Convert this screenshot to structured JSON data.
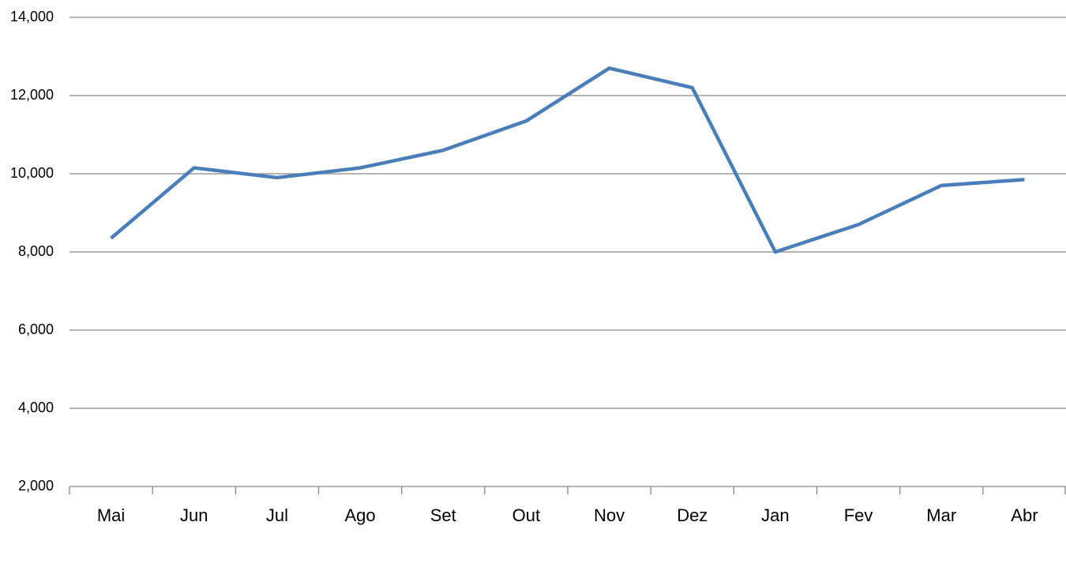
{
  "chart_data": {
    "type": "line",
    "categories": [
      "Mai",
      "Jun",
      "Jul",
      "Ago",
      "Set",
      "Out",
      "Nov",
      "Dez",
      "Jan",
      "Fev",
      "Mar",
      "Abr"
    ],
    "series": [
      {
        "color": "#4a7ebb",
        "values": [
          8350,
          10150,
          9900,
          10150,
          10600,
          11350,
          12700,
          12200,
          8000,
          8700,
          9700,
          9850
        ]
      }
    ],
    "ylim": [
      2000,
      14000
    ],
    "yticks": [
      {
        "value": 2000,
        "label": "2,000"
      },
      {
        "value": 4000,
        "label": "4,000"
      },
      {
        "value": 6000,
        "label": "6,000"
      },
      {
        "value": 8000,
        "label": "8,000"
      },
      {
        "value": 10000,
        "label": "10,000"
      },
      {
        "value": 12000,
        "label": "12,000"
      },
      {
        "value": 14000,
        "label": "14,000"
      }
    ],
    "grid": true
  }
}
